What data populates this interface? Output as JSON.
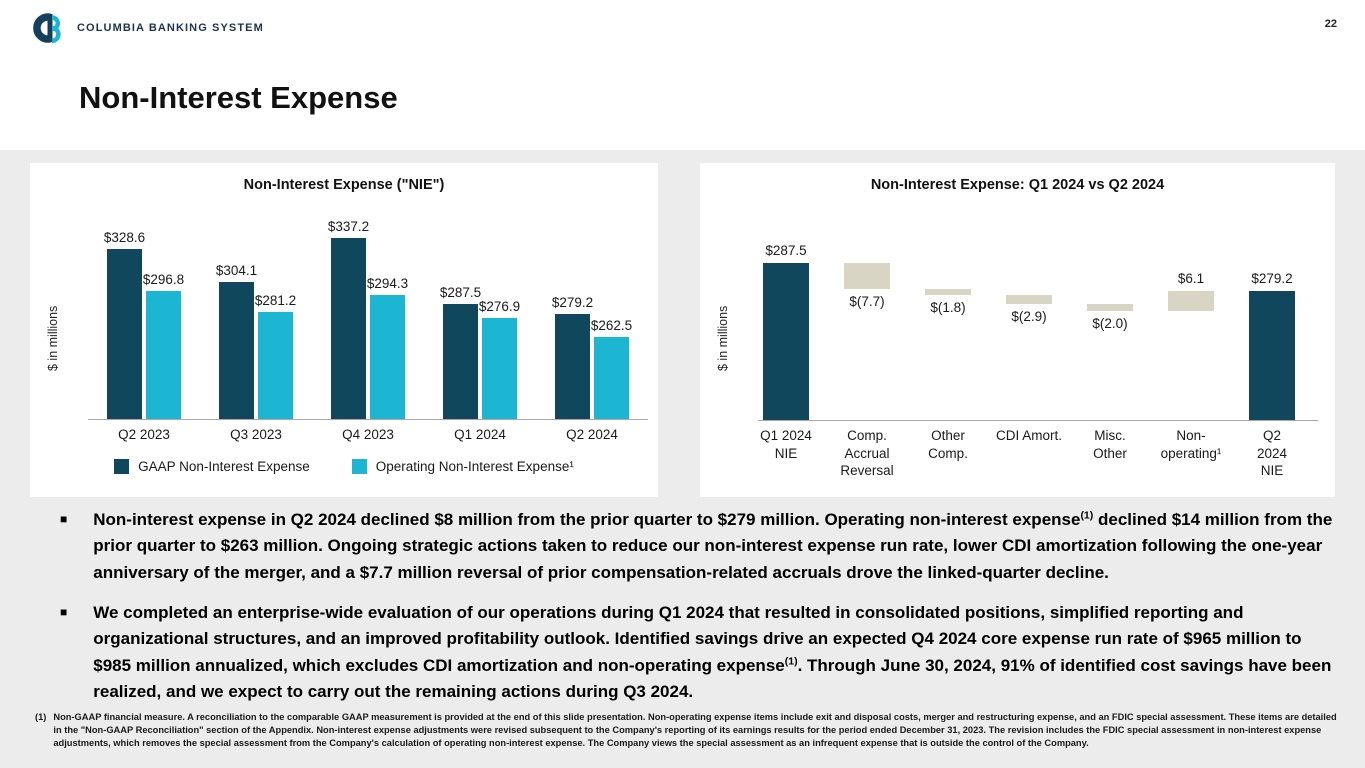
{
  "header": {
    "logo_text": "COLUMBIA BANKING SYSTEM",
    "page_number": "22",
    "title": "Non-Interest Expense"
  },
  "chart_data": [
    {
      "type": "bar",
      "title": "Non-Interest Expense (\"NIE\")",
      "ylabel": "$ in millions",
      "categories": [
        "Q2 2023",
        "Q3 2023",
        "Q4 2023",
        "Q1 2024",
        "Q2 2024"
      ],
      "series": [
        {
          "name": "GAAP Non-Interest Expense",
          "color": "#11475D",
          "values": [
            328.6,
            304.1,
            337.2,
            287.5,
            279.2
          ]
        },
        {
          "name": "Operating Non-Interest Expense¹",
          "color": "#1CB5D2",
          "values": [
            296.8,
            281.2,
            294.3,
            276.9,
            262.5
          ]
        }
      ],
      "value_prefix": "$",
      "ylim": [
        200,
        345
      ],
      "grid": false,
      "legend_position": "bottom"
    },
    {
      "type": "waterfall",
      "title": "Non-Interest Expense: Q1 2024 vs Q2 2024",
      "ylabel": "$ in millions",
      "categories": [
        "Q1 2024\nNIE",
        "Comp.\nAccrual\nReversal",
        "Other\nComp.",
        "CDI Amort.",
        "Misc.\nOther",
        "Non-\noperating¹",
        "Q2 2024\nNIE"
      ],
      "bars": [
        {
          "label": "$287.5",
          "value": 287.5,
          "kind": "total"
        },
        {
          "label": "$(7.7)",
          "value": -7.7,
          "kind": "delta"
        },
        {
          "label": "$(1.8)",
          "value": -1.8,
          "kind": "delta"
        },
        {
          "label": "$(2.9)",
          "value": -2.9,
          "kind": "delta"
        },
        {
          "label": "$(2.0)",
          "value": -2.0,
          "kind": "delta"
        },
        {
          "label": "$6.1",
          "value": 6.1,
          "kind": "delta"
        },
        {
          "label": "$279.2",
          "value": 279.2,
          "kind": "total"
        }
      ],
      "colors": {
        "total": "#11475D",
        "delta": "#D9D5C5"
      },
      "ylim": [
        240,
        295
      ],
      "grid": false
    }
  ],
  "bullets": {
    "marker": "■",
    "items": [
      {
        "pre": "Non-interest expense in Q2 2024 declined $8 million from the prior quarter to $279 million. Operating non-interest expense",
        "sup": "(1)",
        "post": " declined $14 million from the prior quarter to $263 million. Ongoing strategic actions taken to reduce our non-interest expense run rate, lower CDI amortization following the one-year anniversary of the merger, and a $7.7 million reversal of prior compensation-related accruals drove the linked-quarter decline."
      },
      {
        "pre": "We completed an enterprise-wide evaluation of our operations during Q1 2024 that resulted in consolidated positions, simplified reporting and organizational structures, and an improved profitability outlook. Identified savings drive an expected Q4 2024 core expense run rate of $965 million to $985 million annualized, which excludes CDI amortization and non-operating expense",
        "sup": "(1)",
        "post": ". Through June 30, 2024, 91% of identified cost savings have been realized, and we expect to carry out the remaining actions during Q3 2024."
      }
    ]
  },
  "footnote": {
    "marker": "(1)",
    "text": "Non-GAAP financial measure. A reconciliation to the comparable GAAP measurement is provided at the end of this slide presentation. Non-operating expense items include exit and disposal costs, merger and restructuring expense, and an FDIC special assessment. These items are detailed in the \"Non-GAAP Reconciliation\" section of the Appendix. Non-interest expense adjustments were revised subsequent to the Company's reporting of its earnings results for the period ended December 31, 2023. The revision includes the FDIC special assessment in non-interest expense adjustments, which removes the special assessment from the Company's calculation of operating non-interest expense. The Company views the special assessment as an infrequent expense that is outside the control of the Company."
  }
}
